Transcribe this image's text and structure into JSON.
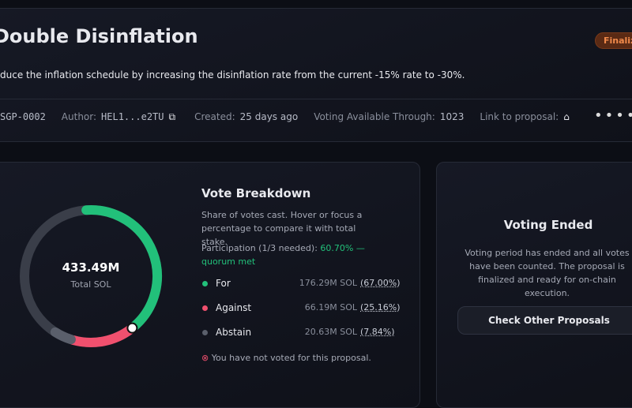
{
  "header": {
    "title": "Double Disinflation",
    "status": "Finalized",
    "description": "duce the inflation schedule by increasing the disinflation rate from the current -15% rate to -30%."
  },
  "meta": {
    "id": "SGP-0002",
    "author_label": "Author:",
    "author": "HEL1...e2TU",
    "created_label": "Created:",
    "created": "25 days ago",
    "voting_label": "Voting Available Through:",
    "voting": "1023",
    "link_label": "Link to proposal:"
  },
  "breakdown": {
    "total": "433.49M",
    "total_label": "Total SOL",
    "title": "Vote Breakdown",
    "subtitle": "Share of votes cast. Hover or focus a percentage to compare it with total stake.",
    "participation_label": "Participation (1/3 needed):",
    "participation": 60.7,
    "participation_value_label": "60.70%",
    "participation_status": "— quorum met",
    "votes": [
      {
        "name": "For",
        "amount": "176.29M SOL",
        "percent": 67.0,
        "percent_label": "(67.00%)",
        "color": "#22c07a"
      },
      {
        "name": "Against",
        "amount": "66.19M SOL",
        "percent": 25.16,
        "percent_label": "(25.16%)",
        "color": "#f0506e"
      },
      {
        "name": "Abstain",
        "amount": "20.63M SOL",
        "percent": 7.84,
        "percent_label": "(7.84%)",
        "color": "#5a5f6b"
      }
    ],
    "not_voted": "You have not voted for this proposal."
  },
  "ended": {
    "title": "Voting Ended",
    "text": "Voting period has ended and all votes have been counted. The proposal is finalized and ready for on-chain execution.",
    "button": "Check Other Proposals"
  }
}
